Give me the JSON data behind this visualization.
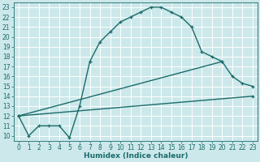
{
  "xlabel": "Humidex (Indice chaleur)",
  "bg_color": "#cce8ea",
  "line_color": "#1a6b6b",
  "grid_color": "#ffffff",
  "xlim": [
    -0.5,
    23.5
  ],
  "ylim": [
    9.5,
    23.5
  ],
  "xticks": [
    0,
    1,
    2,
    3,
    4,
    5,
    6,
    7,
    8,
    9,
    10,
    11,
    12,
    13,
    14,
    15,
    16,
    17,
    18,
    19,
    20,
    21,
    22,
    23
  ],
  "yticks": [
    10,
    11,
    12,
    13,
    14,
    15,
    16,
    17,
    18,
    19,
    20,
    21,
    22,
    23
  ],
  "curve1_x": [
    0,
    1,
    2,
    3,
    4,
    5,
    6,
    7,
    8,
    9,
    10,
    11,
    12,
    13,
    14,
    15,
    16,
    17,
    18,
    19,
    20,
    21,
    22,
    23
  ],
  "curve1_y": [
    12,
    10,
    11,
    11,
    11,
    9.8,
    13,
    17.5,
    19.5,
    20.5,
    21.5,
    22,
    22.5,
    23,
    23,
    22.5,
    22,
    21,
    18.5,
    18,
    17.5,
    16,
    15.3,
    15
  ],
  "curve2_x": [
    0,
    23
  ],
  "curve2_y": [
    12,
    14
  ],
  "curve3_x": [
    0,
    20
  ],
  "curve3_y": [
    12,
    17.5
  ],
  "marker_size": 3.5,
  "line_width": 1.0,
  "tick_fontsize": 5.5,
  "xlabel_fontsize": 6.5
}
